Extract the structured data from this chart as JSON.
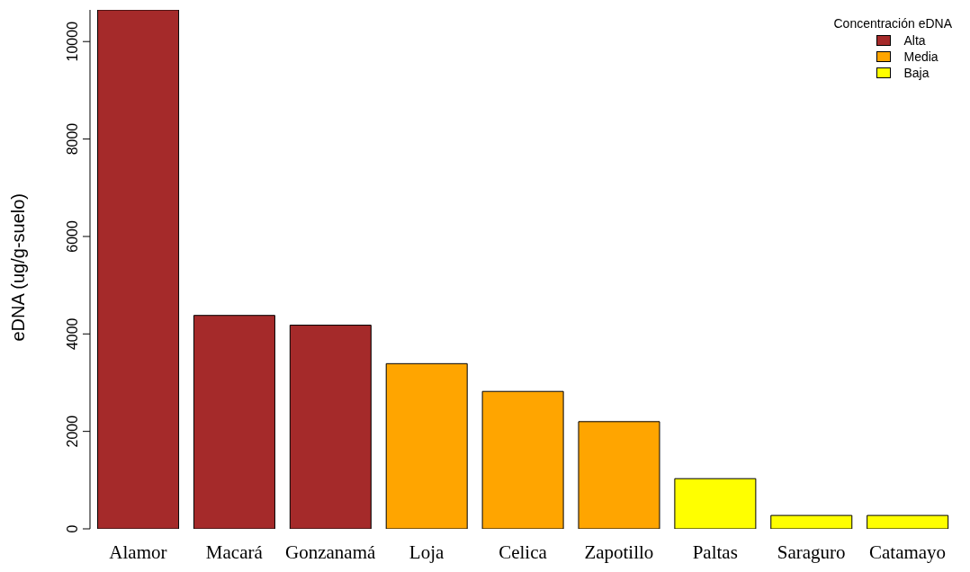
{
  "chart_data": {
    "type": "bar",
    "ylabel": "eDNA (ug/g-suelo)",
    "legend_title": "Concentración eDNA",
    "categories": [
      "Alamor",
      "Macará",
      "Gonzanamá",
      "Loja",
      "Celica",
      "Zapotillo",
      "Paltas",
      "Saraguro",
      "Catamayo"
    ],
    "series": [
      {
        "name": "Alta",
        "color": "#a52a2a",
        "values": [
          10650,
          4380,
          4180,
          null,
          null,
          null,
          null,
          null,
          null
        ]
      },
      {
        "name": "Media",
        "color": "#ffa500",
        "values": [
          null,
          null,
          null,
          3390,
          2820,
          2200,
          null,
          null,
          null
        ]
      },
      {
        "name": "Baja",
        "color": "#ffff00",
        "values": [
          null,
          null,
          null,
          null,
          null,
          null,
          1030,
          275,
          275
        ]
      }
    ],
    "stacked": true,
    "ylim": [
      0,
      10650
    ],
    "yticks": [
      0,
      2000,
      4000,
      6000,
      8000,
      10000
    ],
    "grid": false,
    "legend": "top right"
  }
}
